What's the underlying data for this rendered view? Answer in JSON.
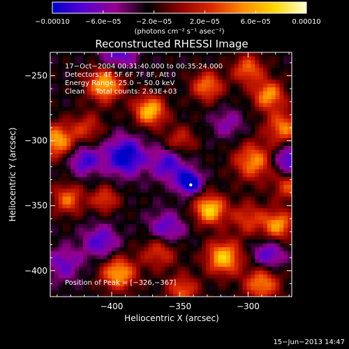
{
  "chart_data": {
    "type": "heatmap",
    "title": "Reconstructed RHESSI Image",
    "xlabel": "Heliocentric X (arcsec)",
    "ylabel": "Heliocentric Y (arcsec)",
    "xlim": [
      -445,
      -268
    ],
    "ylim": [
      -420,
      -232
    ],
    "x_ticks": [
      -400,
      -350,
      -300
    ],
    "y_ticks": [
      -250,
      -300,
      -350,
      -400
    ],
    "x_tick_labels": [
      "−400",
      "−350",
      "−300"
    ],
    "y_tick_labels": [
      "−250",
      "−300",
      "−350",
      "−400"
    ],
    "colorbar": {
      "min": -0.0001,
      "max": 0.0001,
      "tick_values": [
        -0.0001,
        -6e-05,
        -2e-05,
        2e-05,
        6e-05,
        0.0001
      ],
      "tick_labels": [
        "−0.00010",
        "−6.0e−05",
        "−2.0e−05",
        "2.0e−05",
        "6.0e−05",
        "0.00010"
      ],
      "units": "(photons cm⁻² s⁻¹ asec⁻²)"
    },
    "colormap": [
      "#0000c8",
      "#5a00d2",
      "#96008c",
      "#000000",
      "#8c0000",
      "#dc2800",
      "#ff8c00",
      "#ffd700",
      "#ffffd2"
    ],
    "annotations": [
      "17−Oct−2004 00:31:40.000 to 00:35:24.000",
      "Detectors: 4F 5F 6F 7F 8F, Att 0",
      "Energy Range: 25.0 − 50.0 keV",
      "Clean     Total counts: 2.93E+03"
    ],
    "peak_label": "Position of Peak = [−326,−367]",
    "peak_position": [
      -326,
      -367
    ],
    "marker_position": [
      -342,
      -334
    ],
    "image_sources": [
      {
        "x": -405,
        "y": -257,
        "a": 0.9,
        "s": 9
      },
      {
        "x": -372,
        "y": -277,
        "a": 0.95,
        "s": 8
      },
      {
        "x": -330,
        "y": -258,
        "a": 0.7,
        "s": 8
      },
      {
        "x": -300,
        "y": -245,
        "a": 0.65,
        "s": 8
      },
      {
        "x": -285,
        "y": -265,
        "a": 0.8,
        "s": 8
      },
      {
        "x": -440,
        "y": -300,
        "a": 0.85,
        "s": 9
      },
      {
        "x": -432,
        "y": -345,
        "a": 0.65,
        "s": 8
      },
      {
        "x": -405,
        "y": -345,
        "a": 0.55,
        "s": 7
      },
      {
        "x": -328,
        "y": -353,
        "a": 1.0,
        "s": 8
      },
      {
        "x": -296,
        "y": -316,
        "a": 0.75,
        "s": 10
      },
      {
        "x": -274,
        "y": -290,
        "a": 0.7,
        "s": 9
      },
      {
        "x": -300,
        "y": -360,
        "a": 0.5,
        "s": 9
      },
      {
        "x": -278,
        "y": -365,
        "a": 0.8,
        "s": 8
      },
      {
        "x": -395,
        "y": -402,
        "a": 0.85,
        "s": 9
      },
      {
        "x": -365,
        "y": -385,
        "a": 0.55,
        "s": 9
      },
      {
        "x": -318,
        "y": -390,
        "a": 0.95,
        "s": 9
      },
      {
        "x": -290,
        "y": -410,
        "a": 0.75,
        "s": 9
      },
      {
        "x": -348,
        "y": -415,
        "a": 0.6,
        "s": 8
      },
      {
        "x": -270,
        "y": -335,
        "a": 0.55,
        "s": 8
      },
      {
        "x": -418,
        "y": -290,
        "a": 0.45,
        "s": 8
      },
      {
        "x": -350,
        "y": -300,
        "a": 0.45,
        "s": 8
      },
      {
        "x": -395,
        "y": -232,
        "a": -0.55,
        "s": 9
      },
      {
        "x": -390,
        "y": -312,
        "a": -0.85,
        "s": 10
      },
      {
        "x": -358,
        "y": -318,
        "a": -0.6,
        "s": 9
      },
      {
        "x": -343,
        "y": -332,
        "a": -1.0,
        "s": 6
      },
      {
        "x": -420,
        "y": -315,
        "a": -0.6,
        "s": 8
      },
      {
        "x": -408,
        "y": -378,
        "a": -0.55,
        "s": 9
      },
      {
        "x": -360,
        "y": -368,
        "a": -0.55,
        "s": 9
      },
      {
        "x": -270,
        "y": -315,
        "a": -0.65,
        "s": 8
      },
      {
        "x": -285,
        "y": -388,
        "a": -0.55,
        "s": 8
      },
      {
        "x": -315,
        "y": -287,
        "a": -0.35,
        "s": 8
      },
      {
        "x": -435,
        "y": -395,
        "a": -0.45,
        "s": 9
      }
    ]
  },
  "timestamp": "15−Jun−2013 14:47"
}
